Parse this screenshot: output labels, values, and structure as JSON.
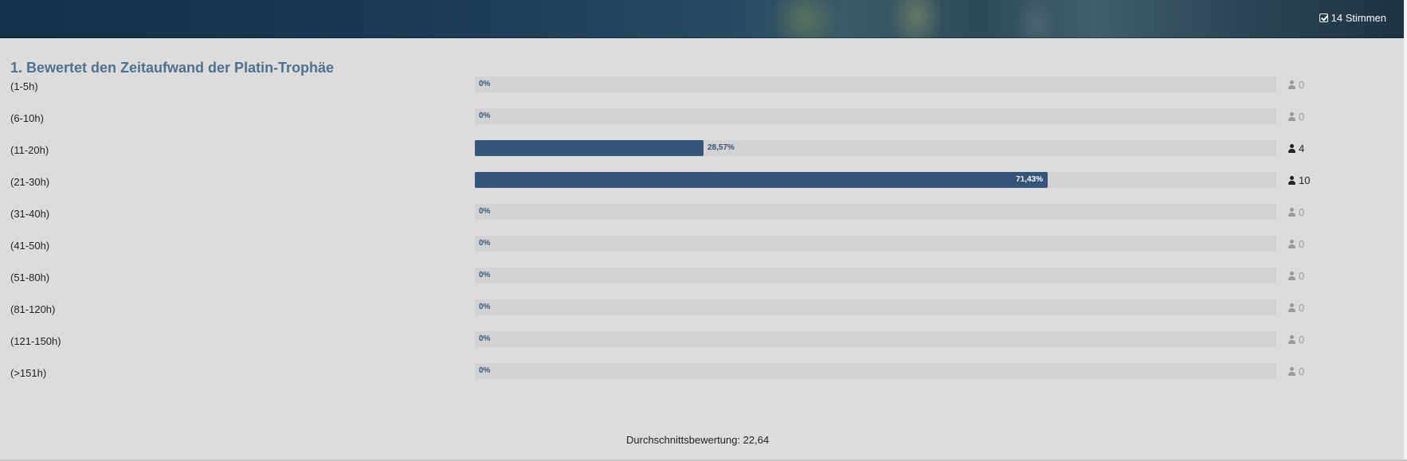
{
  "header": {
    "votes_label": "14 Stimmen"
  },
  "question": {
    "title": "1. Bewertet den Zeitaufwand der Platin-Trophäe",
    "options": [
      {
        "label": "(1-5h)",
        "percent_label": "0%",
        "percent": 0,
        "count": "0"
      },
      {
        "label": "(6-10h)",
        "percent_label": "0%",
        "percent": 0,
        "count": "0"
      },
      {
        "label": "(11-20h)",
        "percent_label": "28,57%",
        "percent": 28.57,
        "count": "4"
      },
      {
        "label": "(21-30h)",
        "percent_label": "71,43%",
        "percent": 71.43,
        "count": "10"
      },
      {
        "label": "(31-40h)",
        "percent_label": "0%",
        "percent": 0,
        "count": "0"
      },
      {
        "label": "(41-50h)",
        "percent_label": "0%",
        "percent": 0,
        "count": "0"
      },
      {
        "label": "(51-80h)",
        "percent_label": "0%",
        "percent": 0,
        "count": "0"
      },
      {
        "label": "(81-120h)",
        "percent_label": "0%",
        "percent": 0,
        "count": "0"
      },
      {
        "label": "(121-150h)",
        "percent_label": "0%",
        "percent": 0,
        "count": "0"
      },
      {
        "label": "(>151h)",
        "percent_label": "0%",
        "percent": 0,
        "count": "0"
      }
    ],
    "average_label": "Durchschnittsbewertung: 22,64"
  },
  "colors": {
    "bar": "#34557a",
    "title": "#4f7190",
    "track": "#d2d2d2"
  },
  "icons": {
    "votes": "check-square-icon",
    "count": "user-icon"
  }
}
